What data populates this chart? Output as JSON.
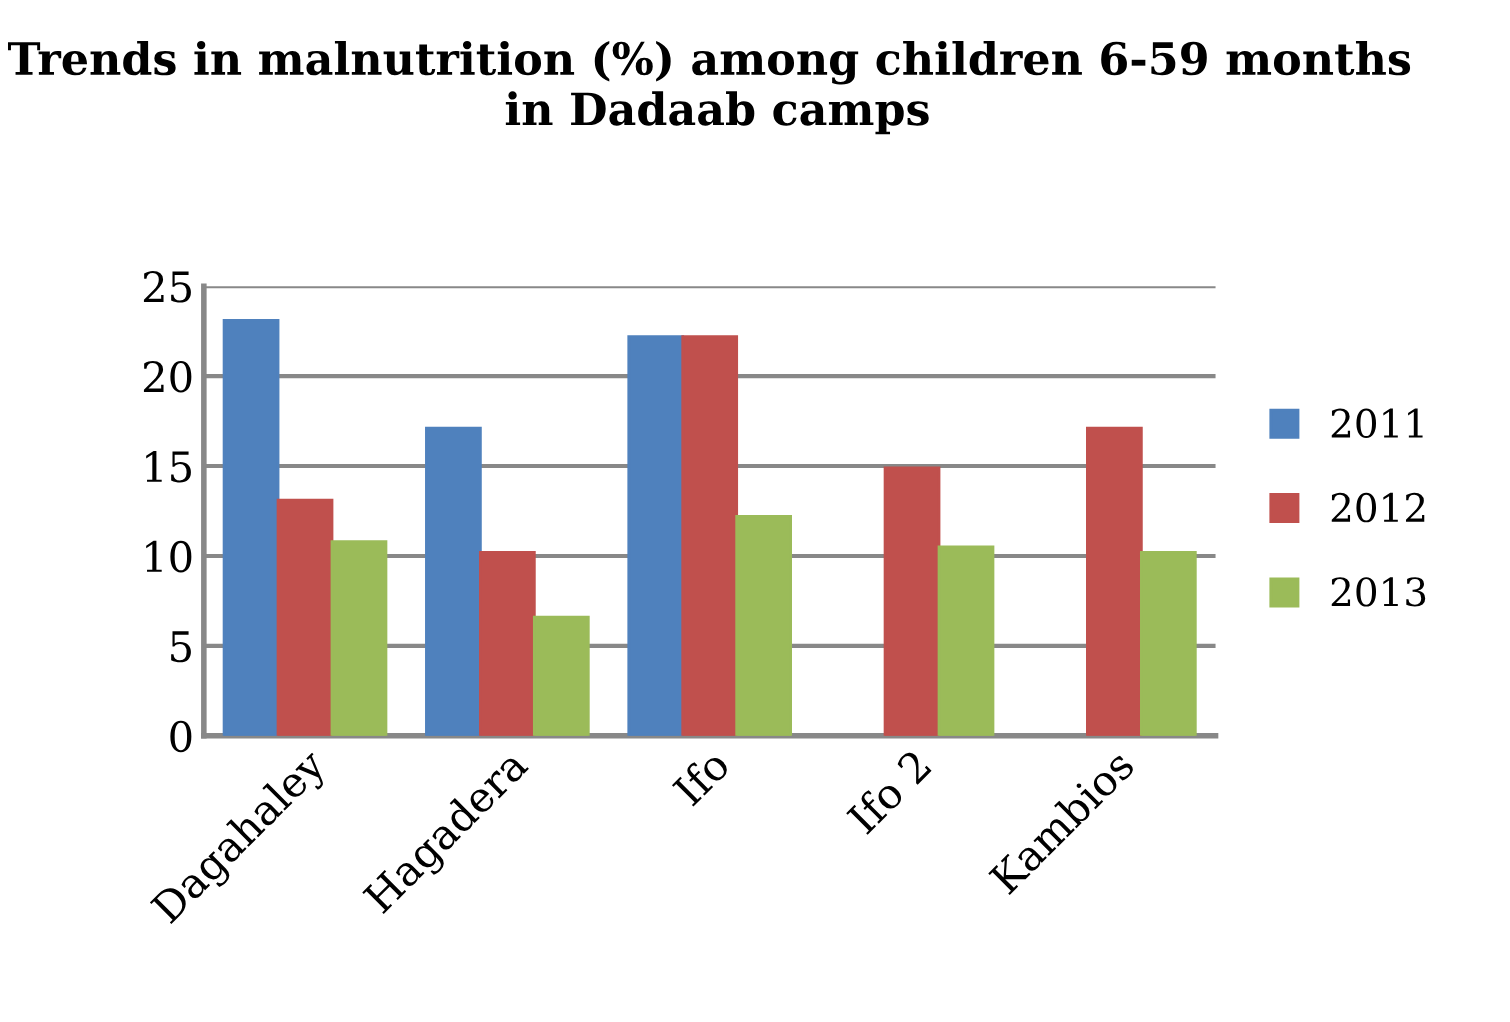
{
  "chart_data": {
    "type": "bar",
    "title": "Trends in malnutrition (%) among children 6-59 months  in Dadaab camps",
    "categories": [
      "Dagahaley",
      "Hagadera",
      "Ifo",
      "Ifo 2",
      "Kambios"
    ],
    "series": [
      {
        "name": "2011",
        "color": "#4f81bd",
        "values": [
          23.1,
          17.1,
          22.2,
          null,
          null
        ]
      },
      {
        "name": "2012",
        "color": "#c0504d",
        "values": [
          13.1,
          10.2,
          22.2,
          14.9,
          17.1
        ]
      },
      {
        "name": "2013",
        "color": "#9bbb59",
        "values": [
          10.8,
          6.6,
          12.2,
          10.5,
          10.2
        ]
      }
    ],
    "ylim": [
      0,
      25
    ],
    "yticks": [
      0,
      5,
      10,
      15,
      20,
      25
    ],
    "grid": "y",
    "legend": "right"
  }
}
